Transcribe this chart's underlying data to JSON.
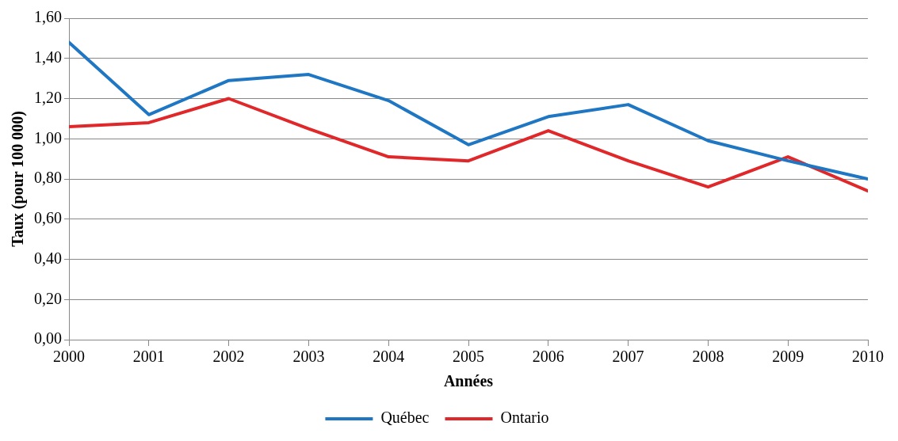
{
  "chart_data": {
    "type": "line",
    "xlabel": "Années",
    "ylabel": "Taux (pour 100 000)",
    "x": [
      2000,
      2001,
      2002,
      2003,
      2004,
      2005,
      2006,
      2007,
      2008,
      2009,
      2010
    ],
    "xlim": [
      2000,
      2010
    ],
    "xticks": [
      2000,
      2001,
      2002,
      2003,
      2004,
      2005,
      2006,
      2007,
      2008,
      2009,
      2010
    ],
    "ylim": [
      0,
      1.6
    ],
    "yticks": [
      {
        "value": 0,
        "label": "0,00"
      },
      {
        "value": 0.2,
        "label": "0,20"
      },
      {
        "value": 0.4,
        "label": "0,40"
      },
      {
        "value": 0.6,
        "label": "0,60"
      },
      {
        "value": 0.8,
        "label": "0,80"
      },
      {
        "value": 1,
        "label": "1,00"
      },
      {
        "value": 1.2,
        "label": "1,20"
      },
      {
        "value": 1.4,
        "label": "1,40"
      },
      {
        "value": 1.6,
        "label": "1,60"
      }
    ],
    "grid": "y",
    "legend": "bottom",
    "marker": "none",
    "line_style": "solid",
    "series": [
      {
        "name": "Québec",
        "color": "#1f77c4",
        "values": [
          1.48,
          1.12,
          1.29,
          1.32,
          1.19,
          0.97,
          1.11,
          1.17,
          0.99,
          0.89,
          0.8
        ]
      },
      {
        "name": "Ontario",
        "color": "#e0272a",
        "values": [
          1.06,
          1.08,
          1.2,
          1.05,
          0.91,
          0.89,
          1.04,
          0.89,
          0.76,
          0.91,
          0.74
        ]
      }
    ]
  }
}
